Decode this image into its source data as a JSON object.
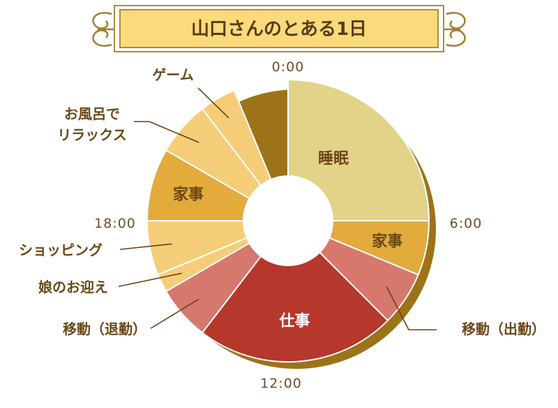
{
  "colors": {
    "sleep": "#e2d389",
    "housework": "#e2ab3c",
    "commute": "#d6786e",
    "work": "#b6372c",
    "leisure": "#f5cd78",
    "shadow": "#9c7318",
    "banner_fill": "#fbda7c",
    "banner_border": "#ab8b3c"
  },
  "chart_data": {
    "type": "pie",
    "variant": "donut",
    "title": "山口さんのとある1日",
    "unit": "hours",
    "axis_ticks": [
      "0:00",
      "6:00",
      "12:00",
      "18:00"
    ],
    "series": [
      {
        "label": "睡眠",
        "start": 0.0,
        "end": 6.0,
        "hours": 6.0,
        "color_key": "sleep",
        "label_position": "inside"
      },
      {
        "label": "家事",
        "start": 6.0,
        "end": 7.5,
        "hours": 1.5,
        "color_key": "housework",
        "label_position": "inside"
      },
      {
        "label": "移動（出勤）",
        "start": 7.5,
        "end": 9.0,
        "hours": 1.5,
        "color_key": "commute",
        "label_position": "outside"
      },
      {
        "label": "仕事",
        "start": 9.0,
        "end": 14.5,
        "hours": 5.5,
        "color_key": "work",
        "label_position": "inside"
      },
      {
        "label": "移動（退勤）",
        "start": 14.5,
        "end": 16.0,
        "hours": 1.5,
        "color_key": "commute",
        "label_position": "outside"
      },
      {
        "label": "娘のお迎え",
        "start": 16.0,
        "end": 16.5,
        "hours": 0.5,
        "color_key": "leisure",
        "label_position": "outside"
      },
      {
        "label": "ショッピング",
        "start": 16.5,
        "end": 18.0,
        "hours": 1.5,
        "color_key": "leisure",
        "label_position": "outside"
      },
      {
        "label": "家事",
        "start": 18.0,
        "end": 20.0,
        "hours": 2.0,
        "color_key": "housework",
        "label_position": "inside"
      },
      {
        "label": "お風呂で\nリラックス",
        "start": 20.0,
        "end": 21.5,
        "hours": 1.5,
        "color_key": "leisure",
        "label_position": "outside"
      },
      {
        "label": "ゲーム",
        "start": 21.5,
        "end": 22.5,
        "hours": 1.0,
        "color_key": "leisure",
        "label_position": "outside"
      }
    ]
  }
}
